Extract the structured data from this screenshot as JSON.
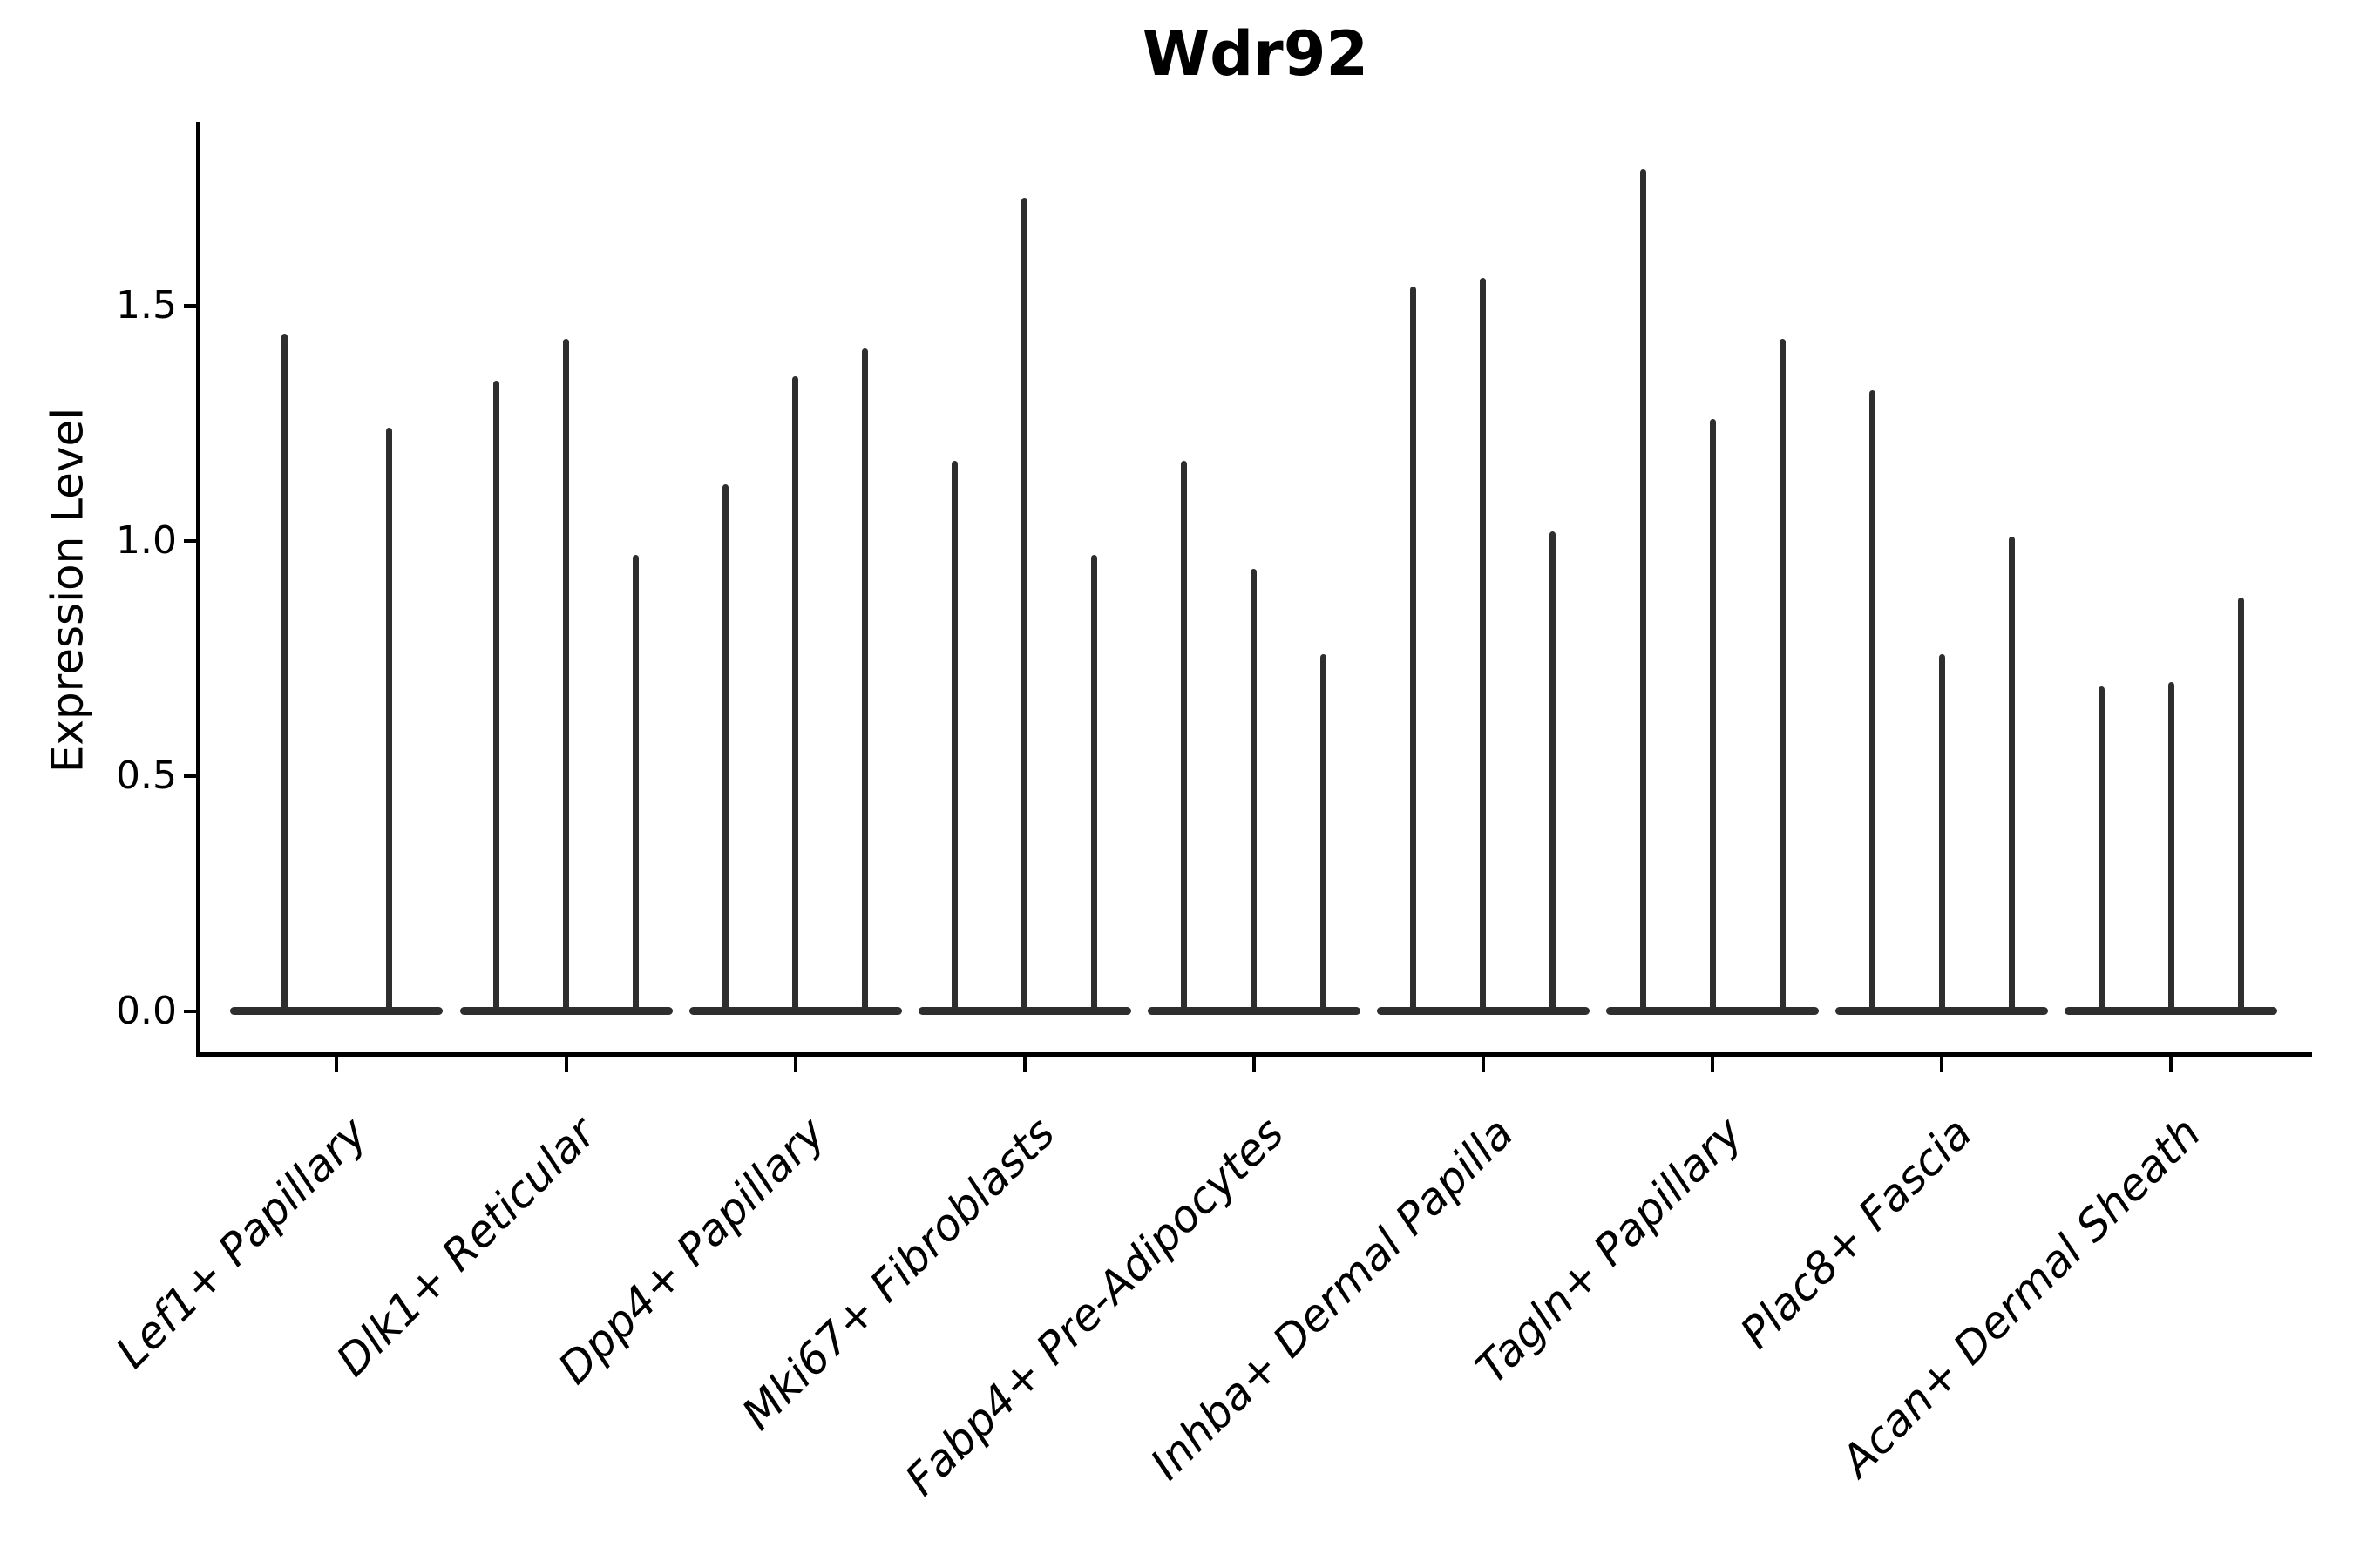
{
  "title": "Wdr92",
  "y_axis": {
    "label": "Expression Level",
    "tick_labels": [
      "0.0",
      "0.5",
      "1.0",
      "1.5"
    ]
  },
  "x_axis": {
    "categories": [
      "Lef1+ Papillary",
      "Dlk1+ Reticular",
      "Dpp4+ Papillary",
      "Mki67+ Fibroblasts",
      "Fabp4+ Pre-Adipocytes",
      "Inhba+ Dermal Papilla",
      "Tagln+ Papillary",
      "Plac8+ Fascia",
      "Acan+ Dermal Sheath"
    ]
  },
  "colors": {
    "violin": "#2e2e2e",
    "axis": "#000000",
    "background": "#ffffff"
  },
  "chart_data": {
    "type": "violin",
    "title": "Wdr92",
    "ylabel": "Expression Level",
    "xlabel": "",
    "grid": false,
    "legend_position": "none",
    "yticks": [
      0.0,
      0.5,
      1.0,
      1.5
    ],
    "ylim": [
      -0.1,
      1.89
    ],
    "categories": [
      "Lef1+ Papillary",
      "Dlk1+ Reticular",
      "Dpp4+ Papillary",
      "Mki67+ Fibroblasts",
      "Fabp4+ Pre-Adipocytes",
      "Inhba+ Dermal Papilla",
      "Tagln+ Papillary",
      "Plac8+ Fascia",
      "Acan+ Dermal Sheath"
    ],
    "series": [
      {
        "category": "Lef1+ Papillary",
        "violin_count": 2,
        "spike_max_values": [
          1.44,
          1.24
        ]
      },
      {
        "category": "Dlk1+ Reticular",
        "violin_count": 3,
        "spike_max_values": [
          1.34,
          1.43,
          0.97
        ]
      },
      {
        "category": "Dpp4+ Papillary",
        "violin_count": 3,
        "spike_max_values": [
          1.12,
          1.35,
          1.41
        ]
      },
      {
        "category": "Mki67+ Fibroblasts",
        "violin_count": 3,
        "spike_max_values": [
          1.17,
          1.73,
          0.97
        ]
      },
      {
        "category": "Fabp4+ Pre-Adipocytes",
        "violin_count": 3,
        "spike_max_values": [
          1.17,
          0.94,
          0.76
        ]
      },
      {
        "category": "Inhba+ Dermal Papilla",
        "violin_count": 3,
        "spike_max_values": [
          1.54,
          1.56,
          1.02
        ]
      },
      {
        "category": "Tagln+ Papillary",
        "violin_count": 3,
        "spike_max_values": [
          1.79,
          1.26,
          1.43
        ]
      },
      {
        "category": "Plac8+ Fascia",
        "violin_count": 3,
        "spike_max_values": [
          1.32,
          0.76,
          1.01
        ]
      },
      {
        "category": "Acan+ Dermal Sheath",
        "violin_count": 3,
        "spike_max_values": [
          0.69,
          0.7,
          0.88
        ]
      }
    ],
    "shape_note": "Each violin is a very thin vertical spike rising from a wide flat base at expression level 0 (most cells express 0); value listed is the top of each spike."
  }
}
